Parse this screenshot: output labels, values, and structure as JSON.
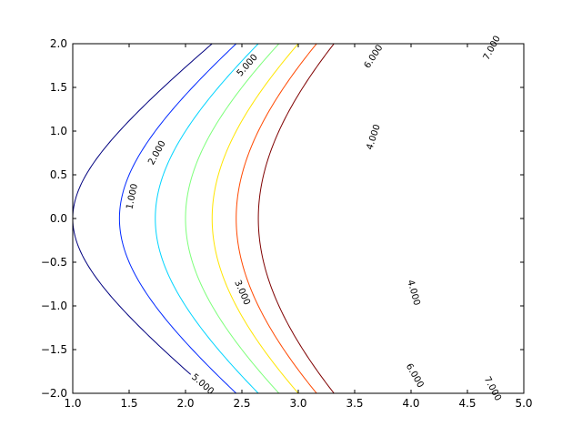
{
  "chart_data": {
    "type": "contour",
    "title": "",
    "xlabel": "",
    "ylabel": "",
    "xlim": [
      1.0,
      5.0
    ],
    "ylim": [
      -2.0,
      2.0
    ],
    "grid": false,
    "x_ticks": [
      "1.0",
      "1.5",
      "2.0",
      "2.5",
      "3.0",
      "3.5",
      "4.0",
      "4.5",
      "5.0"
    ],
    "y_ticks": [
      "2.0",
      "1.5",
      "1.0",
      "0.5",
      "0.0",
      "−0.5",
      "−1.0",
      "−1.5",
      "−2.0"
    ],
    "levels": [
      {
        "value": 1,
        "label": "1.000",
        "color": "#00007f"
      },
      {
        "value": 2,
        "label": "2.000",
        "color": "#0028ff"
      },
      {
        "value": 3,
        "label": "3.000",
        "color": "#00d4ff"
      },
      {
        "value": 4,
        "label": "4.000",
        "color": "#7dff7a"
      },
      {
        "value": 5,
        "label": "5.000",
        "color": "#ffe500"
      },
      {
        "value": 6,
        "label": "6.000",
        "color": "#ff4800"
      },
      {
        "value": 7,
        "label": "7.000",
        "color": "#7f0000"
      }
    ],
    "labels": [
      {
        "text": "1.000",
        "x": 1.53,
        "y": 0.25
      },
      {
        "text": "2.000",
        "x": 1.75,
        "y": 0.75
      },
      {
        "text": "3.000",
        "x": 2.5,
        "y": -0.85
      },
      {
        "text": "4.000",
        "x": 3.67,
        "y": 0.93
      },
      {
        "text": "4.000",
        "x": 4.02,
        "y": -0.85
      },
      {
        "text": "5.000",
        "x": 2.55,
        "y": 1.75
      },
      {
        "text": "5.000",
        "x": 2.15,
        "y": -1.9
      },
      {
        "text": "6.000",
        "x": 3.67,
        "y": 1.85
      },
      {
        "text": "6.000",
        "x": 4.03,
        "y": -1.8
      },
      {
        "text": "7.000",
        "x": 4.72,
        "y": 1.95
      },
      {
        "text": "7.000",
        "x": 4.72,
        "y": -1.95
      }
    ]
  }
}
